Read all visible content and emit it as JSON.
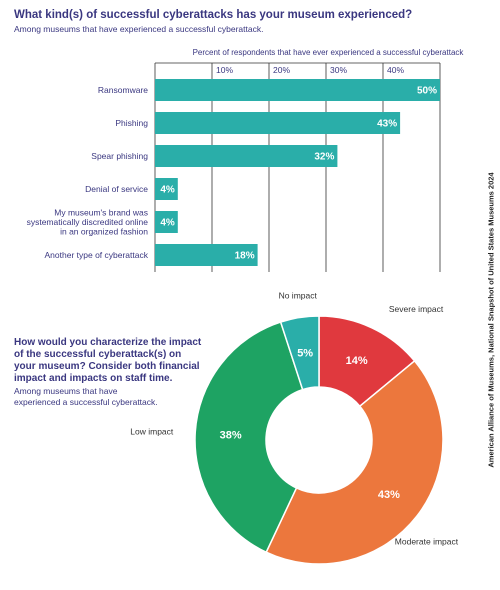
{
  "colors": {
    "heading": "#3a3780",
    "bar": "#2aaea9",
    "severe": "#e0393e",
    "moderate": "#ec773d",
    "low": "#1ea363",
    "none": "#2aaea9"
  },
  "header1": {
    "title": "What kind(s) of successful cyberattacks has your museum experienced?",
    "subtitle": "Among museums that have experienced a successful cyberattack."
  },
  "header2": {
    "title": "How would you characterize the impact of the successful cyberattack(s) on your museum? Consider both financial impact and impacts on staff time.",
    "subtitle": "Among museums that have experienced a successful cyberattack."
  },
  "source": "American Alliance of Museums, National Snapshot of United States Museums 2024",
  "chart_data": [
    {
      "type": "bar",
      "orientation": "horizontal",
      "title": "Percent of respondents that have ever experienced a successful cyberattack",
      "categories": [
        [
          "Ransomware"
        ],
        [
          "Phishing"
        ],
        [
          "Spear phishing"
        ],
        [
          "Denial of service"
        ],
        [
          "My museum's brand was",
          "systematically discredited online",
          "in an organized fashion"
        ],
        [
          "Another type of cyberattack"
        ]
      ],
      "values": [
        50,
        43,
        32,
        4,
        4,
        18
      ],
      "value_labels": [
        "50%",
        "43%",
        "32%",
        "4%",
        "4%",
        "18%"
      ],
      "ticks": [
        10,
        20,
        30,
        40
      ],
      "tick_labels": [
        "10%",
        "20%",
        "30%",
        "40%"
      ],
      "xlim": [
        0,
        50
      ],
      "grid": true
    },
    {
      "type": "pie",
      "style": "donut",
      "labels": [
        "Severe impact",
        "Moderate impact",
        "Low impact",
        "No impact"
      ],
      "values": [
        14,
        43,
        38,
        5
      ],
      "value_labels": [
        "14%",
        "43%",
        "38%",
        "5%"
      ],
      "colors": [
        "#e0393e",
        "#ec773d",
        "#1ea363",
        "#2aaea9"
      ]
    }
  ]
}
